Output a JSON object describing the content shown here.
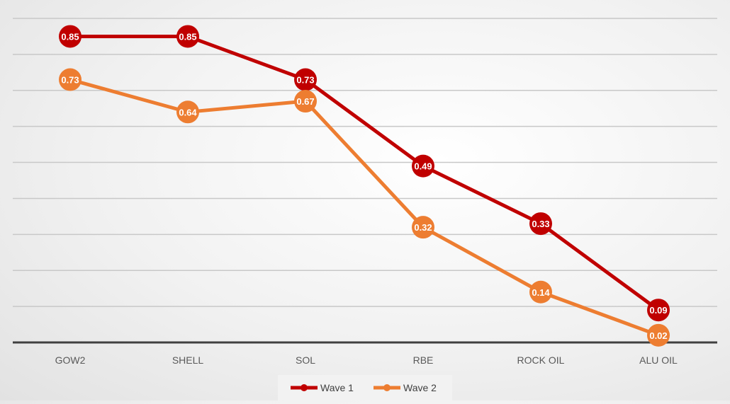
{
  "chart_data": {
    "type": "line",
    "title": "",
    "xlabel": "",
    "ylabel": "",
    "categories": [
      "GOW2",
      "SHELL",
      "SOL",
      "RBE",
      "ROCK OIL",
      "ALU OIL"
    ],
    "ylim": [
      0,
      0.9
    ],
    "grid": true,
    "legend_position": "bottom",
    "series": [
      {
        "name": "Wave 1",
        "color": "#C00000",
        "values": [
          0.85,
          0.85,
          0.73,
          0.49,
          0.33,
          0.09
        ]
      },
      {
        "name": "Wave 2",
        "color": "#ED7D31",
        "values": [
          0.73,
          0.64,
          0.67,
          0.32,
          0.14,
          0.02
        ]
      }
    ]
  }
}
